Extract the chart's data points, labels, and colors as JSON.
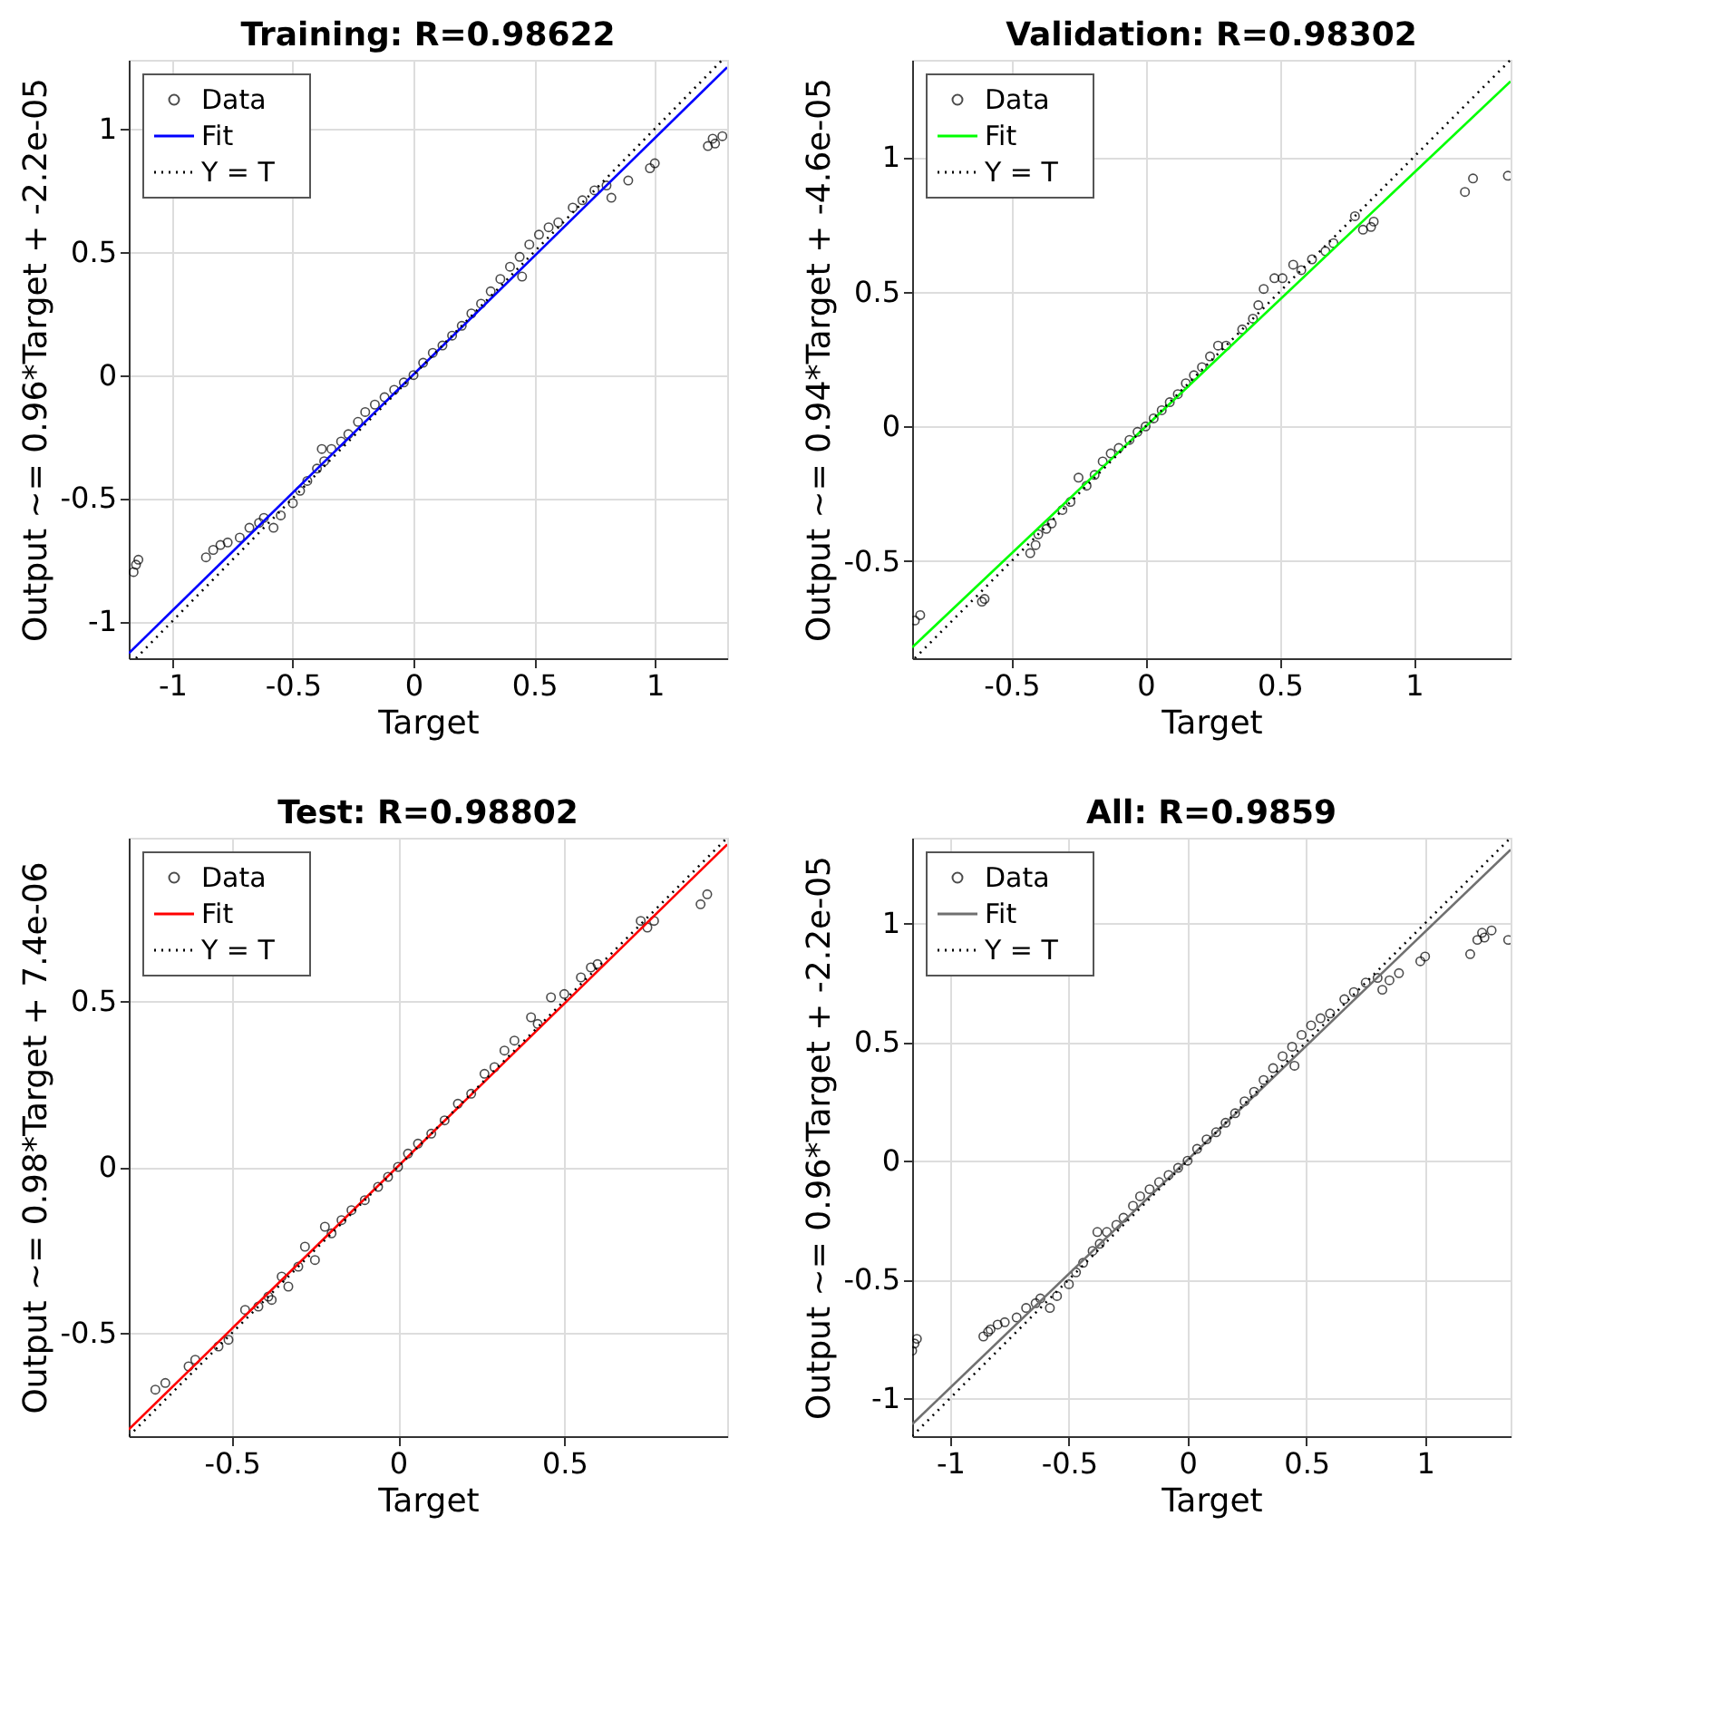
{
  "chart_data": [
    {
      "type": "scatter",
      "title": "Training: R=0.98622",
      "xlabel": "Target",
      "ylabel": "Output ~= 0.96*Target + -2.2e-05",
      "xlim": [
        -1.18,
        1.3
      ],
      "ylim": [
        -1.15,
        1.28
      ],
      "xticks": [
        -1,
        -0.5,
        0,
        0.5,
        1
      ],
      "yticks": [
        -1,
        -0.5,
        0,
        0.5,
        1
      ],
      "grid": true,
      "legend": "top left",
      "series": [
        {
          "name": "Data",
          "type": "scatter",
          "marker": "circle",
          "color": "#000000",
          "x": [
            -1.16,
            -1.15,
            -1.14,
            -0.86,
            -0.83,
            -0.8,
            -0.77,
            -0.72,
            -0.68,
            -0.64,
            -0.62,
            -0.58,
            -0.55,
            -0.5,
            -0.47,
            -0.44,
            -0.4,
            -0.38,
            -0.37,
            -0.34,
            -0.3,
            -0.27,
            -0.23,
            -0.2,
            -0.16,
            -0.12,
            -0.08,
            -0.04,
            0,
            0.04,
            0.08,
            0.12,
            0.16,
            0.2,
            0.24,
            0.28,
            0.32,
            0.36,
            0.4,
            0.44,
            0.45,
            0.48,
            0.52,
            0.56,
            0.6,
            0.66,
            0.7,
            0.75,
            0.8,
            0.82,
            0.89,
            0.98,
            1.0,
            1.22,
            1.24,
            1.25,
            1.28
          ],
          "values": [
            -0.8,
            -0.77,
            -0.75,
            -0.74,
            -0.71,
            -0.69,
            -0.68,
            -0.66,
            -0.62,
            -0.6,
            -0.58,
            -0.62,
            -0.57,
            -0.52,
            -0.47,
            -0.43,
            -0.38,
            -0.3,
            -0.35,
            -0.3,
            -0.27,
            -0.24,
            -0.19,
            -0.15,
            -0.12,
            -0.09,
            -0.06,
            -0.03,
            0,
            0.05,
            0.09,
            0.12,
            0.16,
            0.2,
            0.25,
            0.29,
            0.34,
            0.39,
            0.44,
            0.48,
            0.4,
            0.53,
            0.57,
            0.6,
            0.62,
            0.68,
            0.71,
            0.75,
            0.77,
            0.72,
            0.79,
            0.84,
            0.86,
            0.93,
            0.96,
            0.94,
            0.97
          ]
        },
        {
          "name": "Fit",
          "type": "line",
          "line_style": "solid",
          "color": "#0000ff",
          "x": [
            -1.18,
            1.3
          ],
          "values": [
            -1.13,
            1.25
          ]
        },
        {
          "name": "Y = T",
          "type": "line",
          "line_style": "dotted",
          "color": "#000000",
          "x": [
            -1.15,
            1.28
          ],
          "values": [
            -1.15,
            1.28
          ]
        }
      ]
    },
    {
      "type": "scatter",
      "title": "Validation: R=0.98302",
      "xlabel": "Target",
      "ylabel": "Output ~= 0.94*Target + -4.6e-05",
      "xlim": [
        -0.87,
        1.36
      ],
      "ylim": [
        -0.86,
        1.36
      ],
      "xticks": [
        -0.5,
        0,
        0.5,
        1
      ],
      "yticks": [
        -0.5,
        0,
        0.5,
        1
      ],
      "grid": true,
      "legend": "top left",
      "series": [
        {
          "name": "Data",
          "type": "scatter",
          "marker": "circle",
          "color": "#000000",
          "x": [
            -0.86,
            -0.84,
            -0.61,
            -0.6,
            -0.43,
            -0.41,
            -0.4,
            -0.37,
            -0.35,
            -0.31,
            -0.28,
            -0.25,
            -0.22,
            -0.19,
            -0.16,
            -0.13,
            -0.1,
            -0.06,
            -0.03,
            0,
            0.03,
            0.06,
            0.09,
            0.12,
            0.15,
            0.18,
            0.21,
            0.24,
            0.27,
            0.3,
            0.36,
            0.4,
            0.42,
            0.44,
            0.48,
            0.51,
            0.55,
            0.58,
            0.62,
            0.67,
            0.7,
            0.78,
            0.81,
            0.84,
            0.85,
            1.19,
            1.22,
            1.35
          ],
          "values": [
            -0.72,
            -0.7,
            -0.65,
            -0.64,
            -0.47,
            -0.44,
            -0.4,
            -0.38,
            -0.36,
            -0.31,
            -0.28,
            -0.19,
            -0.22,
            -0.18,
            -0.13,
            -0.1,
            -0.08,
            -0.05,
            -0.02,
            0,
            0.03,
            0.06,
            0.09,
            0.12,
            0.16,
            0.19,
            0.22,
            0.26,
            0.3,
            0.3,
            0.36,
            0.4,
            0.45,
            0.51,
            0.55,
            0.55,
            0.6,
            0.58,
            0.62,
            0.65,
            0.68,
            0.78,
            0.73,
            0.74,
            0.76,
            0.87,
            0.92,
            0.93
          ]
        },
        {
          "name": "Fit",
          "type": "line",
          "line_style": "solid",
          "color": "#00ff00",
          "x": [
            -0.87,
            1.36
          ],
          "values": [
            -0.82,
            1.28
          ]
        },
        {
          "name": "Y = T",
          "type": "line",
          "line_style": "dotted",
          "color": "#000000",
          "x": [
            -0.86,
            1.36
          ],
          "values": [
            -0.86,
            1.36
          ]
        }
      ]
    },
    {
      "type": "scatter",
      "title": "Test: R=0.98802",
      "xlabel": "Target",
      "ylabel": "Output ~= 0.98*Target + 7.4e-06",
      "xlim": [
        -0.81,
        0.99
      ],
      "ylim": [
        -0.81,
        0.99
      ],
      "xticks": [
        -0.5,
        0,
        0.5
      ],
      "yticks": [
        -0.5,
        0,
        0.5
      ],
      "grid": true,
      "legend": "top left",
      "series": [
        {
          "name": "Data",
          "type": "scatter",
          "marker": "circle",
          "color": "#000000",
          "x": [
            -0.73,
            -0.7,
            -0.63,
            -0.61,
            -0.54,
            -0.51,
            -0.46,
            -0.42,
            -0.39,
            -0.38,
            -0.35,
            -0.33,
            -0.3,
            -0.28,
            -0.25,
            -0.22,
            -0.2,
            -0.17,
            -0.14,
            -0.1,
            -0.06,
            -0.03,
            0,
            0.03,
            0.06,
            0.1,
            0.14,
            0.18,
            0.22,
            0.26,
            0.29,
            0.32,
            0.35,
            0.4,
            0.42,
            0.46,
            0.5,
            0.55,
            0.58,
            0.6,
            0.73,
            0.75,
            0.77,
            0.91,
            0.93
          ],
          "values": [
            -0.67,
            -0.65,
            -0.6,
            -0.58,
            -0.54,
            -0.52,
            -0.43,
            -0.42,
            -0.39,
            -0.4,
            -0.33,
            -0.36,
            -0.3,
            -0.24,
            -0.28,
            -0.18,
            -0.2,
            -0.16,
            -0.13,
            -0.1,
            -0.06,
            -0.03,
            0,
            0.04,
            0.07,
            0.1,
            0.14,
            0.19,
            0.22,
            0.28,
            0.3,
            0.35,
            0.38,
            0.45,
            0.43,
            0.51,
            0.52,
            0.57,
            0.6,
            0.61,
            0.74,
            0.72,
            0.74,
            0.79,
            0.82
          ]
        },
        {
          "name": "Fit",
          "type": "line",
          "line_style": "solid",
          "color": "#ff0000",
          "x": [
            -0.81,
            0.99
          ],
          "values": [
            -0.79,
            0.97
          ]
        },
        {
          "name": "Y = T",
          "type": "line",
          "line_style": "dotted",
          "color": "#000000",
          "x": [
            -0.81,
            0.99
          ],
          "values": [
            -0.81,
            0.99
          ]
        }
      ]
    },
    {
      "type": "scatter",
      "title": "All: R=0.9859",
      "xlabel": "Target",
      "ylabel": "Output ~= 0.96*Target + -2.2e-05",
      "xlim": [
        -1.16,
        1.36
      ],
      "ylim": [
        -1.16,
        1.36
      ],
      "xticks": [
        -1,
        -0.5,
        0,
        0.5,
        1
      ],
      "yticks": [
        -1,
        -0.5,
        0,
        0.5,
        1
      ],
      "grid": true,
      "legend": "top left",
      "series": [
        {
          "name": "Data",
          "type": "scatter",
          "marker": "circle",
          "color": "#000000",
          "x": [
            -1.16,
            -1.15,
            -1.14,
            -0.86,
            -0.84,
            -0.83,
            -0.8,
            -0.77,
            -0.72,
            -0.68,
            -0.64,
            -0.62,
            -0.58,
            -0.55,
            -0.5,
            -0.47,
            -0.44,
            -0.4,
            -0.38,
            -0.37,
            -0.34,
            -0.3,
            -0.27,
            -0.23,
            -0.2,
            -0.16,
            -0.12,
            -0.08,
            -0.04,
            0,
            0.04,
            0.08,
            0.12,
            0.16,
            0.2,
            0.24,
            0.28,
            0.32,
            0.36,
            0.4,
            0.44,
            0.45,
            0.48,
            0.52,
            0.56,
            0.6,
            0.66,
            0.7,
            0.75,
            0.8,
            0.82,
            0.85,
            0.89,
            0.98,
            1.0,
            1.19,
            1.22,
            1.24,
            1.25,
            1.28,
            1.35
          ],
          "values": [
            -0.8,
            -0.77,
            -0.75,
            -0.74,
            -0.72,
            -0.71,
            -0.69,
            -0.68,
            -0.66,
            -0.62,
            -0.6,
            -0.58,
            -0.62,
            -0.57,
            -0.52,
            -0.47,
            -0.43,
            -0.38,
            -0.3,
            -0.35,
            -0.3,
            -0.27,
            -0.24,
            -0.19,
            -0.15,
            -0.12,
            -0.09,
            -0.06,
            -0.03,
            0,
            0.05,
            0.09,
            0.12,
            0.16,
            0.2,
            0.25,
            0.29,
            0.34,
            0.39,
            0.44,
            0.48,
            0.4,
            0.53,
            0.57,
            0.6,
            0.62,
            0.68,
            0.71,
            0.75,
            0.77,
            0.72,
            0.76,
            0.79,
            0.84,
            0.86,
            0.87,
            0.93,
            0.96,
            0.94,
            0.97,
            0.93
          ]
        },
        {
          "name": "Fit",
          "type": "line",
          "line_style": "solid",
          "color": "#707070",
          "x": [
            -1.16,
            1.36
          ],
          "values": [
            -1.11,
            1.31
          ]
        },
        {
          "name": "Y = T",
          "type": "line",
          "line_style": "dotted",
          "color": "#000000",
          "x": [
            -1.16,
            1.36
          ],
          "values": [
            -1.16,
            1.36
          ]
        }
      ]
    }
  ]
}
